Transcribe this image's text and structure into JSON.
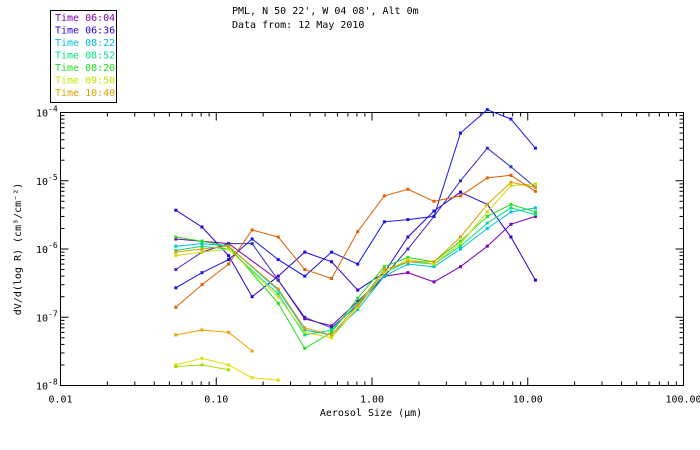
{
  "header": {
    "title_line1": "PML, N 50 22', W 04 08', Alt 0m",
    "title_line2": "Data from: 12 May 2010"
  },
  "chart_data": {
    "type": "line",
    "xscale": "log",
    "yscale": "log",
    "xlim": [
      0.01,
      100
    ],
    "ylim": [
      1e-08,
      0.0001
    ],
    "xlabel": "Aerosol Size (µm)",
    "ylabel": "dV/d(log R) (cm³/cm⁻²)",
    "x_tick_labels": [
      "0.01",
      "0.10",
      "1.00",
      "10.00",
      "100.00"
    ],
    "y_tick_labels": [
      {
        "base": "10",
        "exp": "-8"
      },
      {
        "base": "10",
        "exp": "-7"
      },
      {
        "base": "10",
        "exp": "-6"
      },
      {
        "base": "10",
        "exp": "-5"
      },
      {
        "base": "10",
        "exp": "-4"
      }
    ],
    "series": [
      {
        "name": "Time 06:04",
        "color": "#7f00b0",
        "x": [
          0.055,
          0.081,
          0.12,
          0.25,
          0.37,
          0.55,
          0.81,
          1.2,
          1.7,
          2.5,
          3.7,
          5.5,
          7.8,
          11.2
        ],
        "y": [
          1.4e-06,
          1.3e-06,
          1.2e-06,
          3.5e-07,
          9.5e-08,
          7.5e-08,
          1.7e-07,
          4e-07,
          4.5e-07,
          3.3e-07,
          5.5e-07,
          1.1e-06,
          2.3e-06,
          3e-06
        ]
      },
      {
        "name": "Time 06:36",
        "color": "#2a00d8",
        "x": [
          0.055,
          0.081,
          0.12,
          0.17,
          0.25,
          0.37,
          0.55,
          0.81,
          1.2,
          1.7,
          2.5,
          3.7,
          5.5,
          7.8,
          11.2
        ],
        "y": [
          3.7e-06,
          2.1e-06,
          8e-07,
          2e-07,
          4e-07,
          9e-07,
          6.5e-07,
          2.5e-07,
          4.5e-07,
          1.5e-06,
          3.6e-06,
          6.8e-06,
          4.5e-06,
          1.5e-06,
          3.5e-07
        ]
      },
      {
        "name": "Time 06:04",
        "color": "#3030c0",
        "x": [
          0.055,
          0.081,
          0.12,
          0.17,
          0.25,
          0.37,
          0.55,
          0.81,
          1.2,
          1.7,
          2.5,
          3.7,
          5.5,
          7.8,
          11.2
        ],
        "y": [
          5e-07,
          9e-07,
          1.2e-06,
          1.2e-06,
          3.5e-07,
          1e-07,
          7e-08,
          1.5e-07,
          4e-07,
          1e-06,
          3e-06,
          1e-05,
          3e-05,
          1.6e-05,
          8e-06
        ]
      },
      {
        "name": "Time 06:36",
        "color": "#1414f0",
        "x": [
          0.055,
          0.081,
          0.12,
          0.17,
          0.25,
          0.37,
          0.55,
          0.81,
          1.2,
          1.7,
          2.5,
          3.7,
          5.5,
          7.8,
          11.2
        ],
        "y": [
          2.7e-07,
          4.5e-07,
          7e-07,
          1.4e-06,
          7e-07,
          4e-07,
          9e-07,
          6e-07,
          2.5e-06,
          2.7e-06,
          3e-06,
          5e-05,
          0.00011,
          8e-05,
          3e-05
        ]
      },
      {
        "name": "Time 08:22",
        "color": "#00c0d8",
        "x": [
          0.055,
          0.081,
          0.12,
          0.25,
          0.37,
          0.55,
          0.81,
          1.2,
          1.7,
          2.5,
          3.7,
          5.5,
          7.8,
          11.2
        ],
        "y": [
          1.1e-06,
          1.2e-06,
          1.1e-06,
          2.5e-07,
          6.5e-08,
          5.5e-08,
          1.3e-07,
          4e-07,
          6e-07,
          5.5e-07,
          1e-06,
          2e-06,
          3.5e-06,
          4e-06
        ]
      },
      {
        "name": "Time 08:52",
        "color": "#00e080",
        "x": [
          0.055,
          0.081,
          0.12,
          0.25,
          0.37,
          0.55,
          0.81,
          1.2,
          1.7,
          2.5,
          3.7,
          5.5,
          7.8,
          11.2
        ],
        "y": [
          9.5e-07,
          1.1e-06,
          1e-06,
          2.2e-07,
          5.5e-08,
          6.5e-08,
          1.6e-07,
          4.5e-07,
          6.5e-07,
          6e-07,
          1.1e-06,
          2.4e-06,
          4e-06,
          3.2e-06
        ]
      },
      {
        "name": "Time 08:20",
        "color": "#20e020",
        "x": [
          0.055,
          0.081,
          0.12,
          0.25,
          0.37,
          0.55,
          0.81,
          1.2,
          1.7,
          2.5,
          3.7,
          5.5,
          7.8,
          11.2
        ],
        "y": [
          1.5e-06,
          1.3e-06,
          1.1e-06,
          1.6e-07,
          3.5e-08,
          6e-08,
          1.9e-07,
          5.5e-07,
          7.5e-07,
          6.5e-07,
          1.3e-06,
          3e-06,
          4.5e-06,
          3.5e-06
        ]
      },
      {
        "name": "Time 09:50",
        "color": "#c8e000",
        "x": [
          0.055,
          0.081,
          0.12,
          0.25,
          0.37,
          0.55,
          0.81,
          1.2,
          1.7,
          2.5,
          3.7,
          5.5,
          7.8,
          11.2
        ],
        "y": [
          8e-07,
          9e-07,
          1e-06,
          2e-07,
          6e-08,
          5e-08,
          1.4e-07,
          4.5e-07,
          7e-07,
          6e-07,
          1.2e-06,
          3.5e-06,
          8.5e-06,
          9e-06
        ]
      },
      {
        "name": "Time 10:40",
        "color": "#e0a000",
        "x": [
          0.055,
          0.081,
          0.12,
          0.25,
          0.37,
          0.55,
          0.81,
          1.2,
          1.7,
          2.5,
          3.7,
          5.5,
          7.8,
          11.2
        ],
        "y": [
          9e-07,
          1e-06,
          1.1e-06,
          2.6e-07,
          7e-08,
          5.5e-08,
          1.5e-07,
          5e-07,
          6.5e-07,
          6.5e-07,
          1.5e-06,
          4.5e-06,
          9.5e-06,
          8e-06
        ]
      },
      {
        "name": "Time 10:40",
        "color": "#e06000",
        "x": [
          0.055,
          0.081,
          0.12,
          0.17,
          0.25,
          0.37,
          0.55,
          0.81,
          1.2,
          1.7,
          2.5,
          3.7,
          5.5,
          7.8,
          11.2
        ],
        "y": [
          1.4e-07,
          3e-07,
          6e-07,
          1.9e-06,
          1.5e-06,
          5e-07,
          3.7e-07,
          1.8e-06,
          6e-06,
          7.5e-06,
          5e-06,
          6e-06,
          1.1e-05,
          1.2e-05,
          7e-06
        ]
      },
      {
        "name": "Time 10:40",
        "color": "#f0a000",
        "x": [
          0.055,
          0.081,
          0.12,
          0.17
        ],
        "y": [
          5.5e-08,
          6.5e-08,
          6e-08,
          3.2e-08
        ]
      },
      {
        "name": "Time 09:50",
        "color": "#e0e000",
        "x": [
          0.055,
          0.081,
          0.12,
          0.17,
          0.25
        ],
        "y": [
          2e-08,
          2.5e-08,
          2e-08,
          1.3e-08,
          1.2e-08
        ]
      },
      {
        "name": "Time 08:20",
        "color": "#a0e000",
        "x": [
          0.055,
          0.081,
          0.12
        ],
        "y": [
          1.9e-08,
          2e-08,
          1.7e-08
        ]
      }
    ],
    "legend": {
      "position": "top-left",
      "entries": [
        {
          "label": "Time 06:04",
          "color": "#7f00b0"
        },
        {
          "label": "Time 06:36",
          "color": "#2a00d8"
        },
        {
          "label": "Time 08:22",
          "color": "#00c0d8"
        },
        {
          "label": "Time 08:52",
          "color": "#00e080"
        },
        {
          "label": "Time 08:20",
          "color": "#20e020"
        },
        {
          "label": "Time 09:50",
          "color": "#c8e000"
        },
        {
          "label": "Time 10:40",
          "color": "#e0a000"
        }
      ]
    }
  }
}
